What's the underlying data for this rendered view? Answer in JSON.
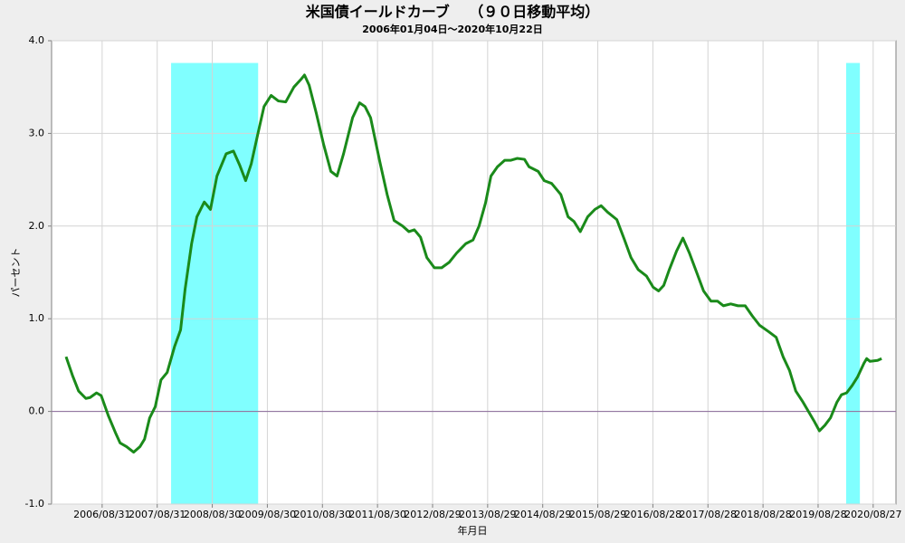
{
  "chart_data": {
    "type": "line",
    "title": "米国債イールドカーブ　 （９０日移動平均）",
    "subtitle": "2006年01月04日～2020年10月22日",
    "x_label": "年月日",
    "y_label": "パーセント",
    "color": "#1a8a1a",
    "grid": true,
    "xlim": [
      "2005/09/30",
      "2021/01/25"
    ],
    "xticks": [
      "2006/08/31",
      "2007/08/31",
      "2008/08/30",
      "2009/08/30",
      "2010/08/30",
      "2011/08/30",
      "2012/08/29",
      "2013/08/29",
      "2014/08/29",
      "2015/08/29",
      "2016/08/28",
      "2017/08/28",
      "2018/08/28",
      "2019/08/28",
      "2020/08/27"
    ],
    "ylim": [
      -1,
      4
    ],
    "yticks": [
      {
        "value": -1,
        "label": "-1.0"
      },
      {
        "value": 0,
        "label": "0.0"
      },
      {
        "value": 1,
        "label": "1.0"
      },
      {
        "value": 2,
        "label": "2.0"
      },
      {
        "value": 3,
        "label": "3.0"
      },
      {
        "value": 4,
        "label": "4.0"
      }
    ],
    "shaded_regions": [
      {
        "start": "2007/12/01",
        "end": "2009/06/30"
      },
      {
        "start": "2020/03/01",
        "end": "2020/05/31"
      }
    ],
    "shade_top": 3.76,
    "shade_color": "#80ffff",
    "x": [
      "2006/01/04",
      "2006/02/15",
      "2006/03/28",
      "2006/05/15",
      "2006/06/12",
      "2006/07/25",
      "2006/08/25",
      "2006/10/12",
      "2006/11/30",
      "2006/12/28",
      "2007/02/09",
      "2007/03/28",
      "2007/05/09",
      "2007/06/08",
      "2007/07/12",
      "2007/08/18",
      "2007/09/25",
      "2007/11/05",
      "2007/12/24",
      "2008/02/02",
      "2008/03/03",
      "2008/04/15",
      "2008/05/20",
      "2008/07/08",
      "2008/08/18",
      "2008/09/30",
      "2008/11/30",
      "2009/01/17",
      "2009/02/27",
      "2009/04/08",
      "2009/05/15",
      "2009/06/26",
      "2009/08/08",
      "2009/09/24",
      "2009/11/11",
      "2009/12/30",
      "2010/02/22",
      "2010/04/08",
      "2010/05/03",
      "2010/06/03",
      "2010/07/20",
      "2010/09/07",
      "2010/10/25",
      "2010/12/05",
      "2011/01/17",
      "2011/03/18",
      "2011/05/03",
      "2011/06/08",
      "2011/07/15",
      "2011/09/15",
      "2011/11/02",
      "2011/12/18",
      "2012/02/12",
      "2012/03/25",
      "2012/04/30",
      "2012/06/10",
      "2012/07/22",
      "2012/09/10",
      "2012/10/28",
      "2012/12/18",
      "2013/02/05",
      "2013/04/06",
      "2013/05/24",
      "2013/07/03",
      "2013/08/15",
      "2013/09/20",
      "2013/11/02",
      "2013/12/20",
      "2014/01/30",
      "2014/03/12",
      "2014/04/30",
      "2014/05/30",
      "2014/07/30",
      "2014/09/08",
      "2014/10/27",
      "2014/12/27",
      "2015/02/13",
      "2015/03/24",
      "2015/05/05",
      "2015/06/23",
      "2015/08/10",
      "2015/09/20",
      "2015/11/02",
      "2016/01/02",
      "2016/02/20",
      "2016/04/05",
      "2016/05/23",
      "2016/07/17",
      "2016/08/30",
      "2016/10/05",
      "2016/11/08",
      "2016/12/15",
      "2017/02/01",
      "2017/03/15",
      "2017/04/27",
      "2017/06/12",
      "2017/07/30",
      "2017/09/17",
      "2017/10/30",
      "2017/12/08",
      "2018/01/26",
      "2018/03/15",
      "2018/05/02",
      "2018/06/18",
      "2018/08/05",
      "2018/10/05",
      "2018/11/23",
      "2019/01/08",
      "2019/02/20",
      "2019/04/02",
      "2019/05/20",
      "2019/07/02",
      "2019/07/31",
      "2019/09/06",
      "2019/10/12",
      "2019/11/18",
      "2019/12/31",
      "2020/01/30",
      "2020/03/04",
      "2020/04/10",
      "2020/05/15",
      "2020/06/27",
      "2020/07/15",
      "2020/08/06",
      "2020/09/25",
      "2020/10/22"
    ],
    "values": [
      0.59,
      0.39,
      0.22,
      0.14,
      0.15,
      0.2,
      0.17,
      -0.05,
      -0.24,
      -0.34,
      -0.38,
      -0.44,
      -0.38,
      -0.3,
      -0.07,
      0.05,
      0.34,
      0.42,
      0.7,
      0.88,
      1.32,
      1.81,
      2.1,
      2.26,
      2.18,
      2.54,
      2.78,
      2.81,
      2.66,
      2.49,
      2.67,
      2.98,
      3.29,
      3.41,
      3.35,
      3.34,
      3.5,
      3.58,
      3.63,
      3.52,
      3.22,
      2.88,
      2.59,
      2.54,
      2.78,
      3.17,
      3.33,
      3.29,
      3.17,
      2.69,
      2.34,
      2.06,
      2.0,
      1.94,
      1.96,
      1.88,
      1.66,
      1.55,
      1.55,
      1.61,
      1.71,
      1.81,
      1.85,
      2.0,
      2.25,
      2.54,
      2.64,
      2.71,
      2.71,
      2.73,
      2.72,
      2.64,
      2.59,
      2.49,
      2.46,
      2.34,
      2.1,
      2.05,
      1.94,
      2.1,
      2.18,
      2.22,
      2.15,
      2.07,
      1.86,
      1.66,
      1.53,
      1.46,
      1.34,
      1.3,
      1.36,
      1.53,
      1.73,
      1.87,
      1.71,
      1.51,
      1.3,
      1.19,
      1.19,
      1.14,
      1.16,
      1.14,
      1.14,
      1.03,
      0.93,
      0.86,
      0.8,
      0.59,
      0.44,
      0.22,
      0.1,
      -0.02,
      -0.1,
      -0.21,
      -0.15,
      -0.07,
      0.1,
      0.18,
      0.2,
      0.28,
      0.37,
      0.52,
      0.57,
      0.54,
      0.55,
      0.57
    ]
  }
}
